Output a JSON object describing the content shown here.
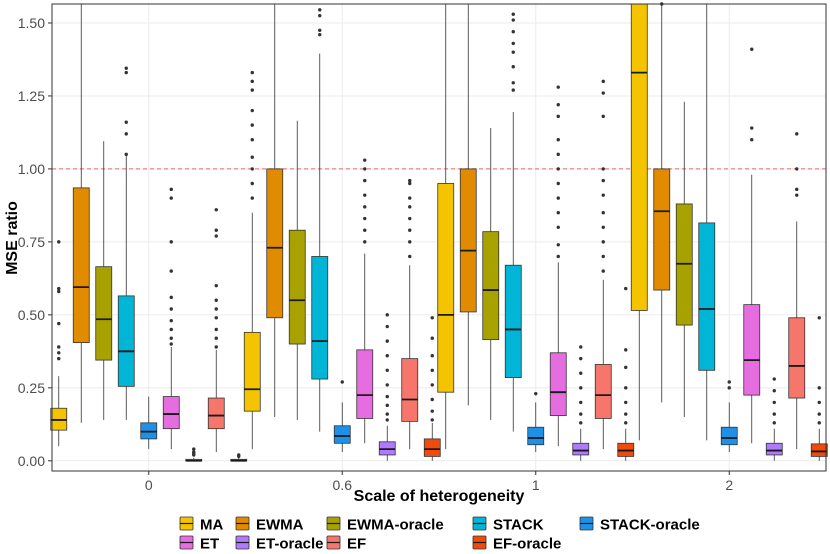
{
  "chart_data": {
    "type": "boxplot",
    "title": "",
    "xlabel": "Scale of heterogeneity",
    "ylabel": "MSE ratio",
    "ylim": [
      -0.035,
      1.565
    ],
    "yticks": [
      0.0,
      0.25,
      0.5,
      0.75,
      1.0,
      1.25,
      1.5
    ],
    "ytick_labels": [
      "0.00",
      "0.25",
      "0.50",
      "0.75",
      "1.00",
      "1.25",
      "1.50"
    ],
    "categories": [
      "0",
      "0.6",
      "1",
      "2"
    ],
    "reference_line": {
      "y": 1.0,
      "style": "dashed",
      "color": "#f08080"
    },
    "legend_position": "bottom",
    "series": [
      {
        "name": "MA",
        "color": "#f5c400",
        "boxes": [
          {
            "whislo": 0.05,
            "q1": 0.105,
            "med": 0.14,
            "q3": 0.18,
            "whishi": 0.29,
            "outliers": [
              0.35,
              0.37,
              0.39,
              0.47,
              0.58,
              0.59,
              0.75
            ]
          },
          {
            "whislo": 0.04,
            "q1": 0.17,
            "med": 0.245,
            "q3": 0.44,
            "whishi": 0.85,
            "outliers": [
              0.9,
              0.95,
              1.0,
              1.04,
              1.1,
              1.15,
              1.2,
              1.27,
              1.3,
              1.33
            ]
          },
          {
            "whislo": 0.04,
            "q1": 0.235,
            "med": 0.5,
            "q3": 0.95,
            "whishi": 1.565,
            "outliers": []
          },
          {
            "whislo": 0.07,
            "q1": 0.515,
            "med": 1.33,
            "q3": 1.565,
            "whishi": 1.565,
            "outliers": []
          }
        ]
      },
      {
        "name": "EWMA",
        "color": "#e08b00",
        "boxes": [
          {
            "whislo": 0.13,
            "q1": 0.405,
            "med": 0.595,
            "q3": 0.935,
            "whishi": 1.565,
            "outliers": []
          },
          {
            "whislo": 0.15,
            "q1": 0.49,
            "med": 0.73,
            "q3": 1.0,
            "whishi": 1.565,
            "outliers": []
          },
          {
            "whislo": 0.19,
            "q1": 0.51,
            "med": 0.72,
            "q3": 1.0,
            "whishi": 1.565,
            "outliers": []
          },
          {
            "whislo": 0.2,
            "q1": 0.585,
            "med": 0.855,
            "q3": 1.0,
            "whishi": 1.565,
            "outliers": [
              1.565
            ]
          }
        ]
      },
      {
        "name": "EWMA-oracle",
        "color": "#a8a200",
        "boxes": [
          {
            "whislo": 0.14,
            "q1": 0.345,
            "med": 0.485,
            "q3": 0.665,
            "whishi": 1.095,
            "outliers": []
          },
          {
            "whislo": 0.14,
            "q1": 0.4,
            "med": 0.55,
            "q3": 0.79,
            "whishi": 1.165,
            "outliers": []
          },
          {
            "whislo": 0.14,
            "q1": 0.415,
            "med": 0.585,
            "q3": 0.785,
            "whishi": 1.14,
            "outliers": []
          },
          {
            "whislo": 0.15,
            "q1": 0.465,
            "med": 0.675,
            "q3": 0.88,
            "whishi": 1.23,
            "outliers": []
          }
        ]
      },
      {
        "name": "STACK",
        "color": "#00b5d6",
        "boxes": [
          {
            "whislo": 0.14,
            "q1": 0.255,
            "med": 0.375,
            "q3": 0.565,
            "whishi": 1.05,
            "outliers": [
              1.05,
              1.12,
              1.16,
              1.33,
              1.345
            ]
          },
          {
            "whislo": 0.1,
            "q1": 0.28,
            "med": 0.41,
            "q3": 0.7,
            "whishi": 1.395,
            "outliers": [
              1.46,
              1.475,
              1.525,
              1.545
            ]
          },
          {
            "whislo": 0.1,
            "q1": 0.285,
            "med": 0.45,
            "q3": 0.67,
            "whishi": 1.195,
            "outliers": [
              1.27,
              1.295,
              1.35,
              1.4,
              1.43,
              1.47,
              1.51,
              1.53
            ]
          },
          {
            "whislo": 0.07,
            "q1": 0.31,
            "med": 0.52,
            "q3": 0.815,
            "whishi": 1.565,
            "outliers": []
          }
        ]
      },
      {
        "name": "STACK-oracle",
        "color": "#1e90e8",
        "boxes": [
          {
            "whislo": 0.04,
            "q1": 0.075,
            "med": 0.1,
            "q3": 0.13,
            "whishi": 0.22,
            "outliers": []
          },
          {
            "whislo": 0.03,
            "q1": 0.06,
            "med": 0.085,
            "q3": 0.12,
            "whishi": 0.2,
            "outliers": [
              0.27
            ]
          },
          {
            "whislo": 0.03,
            "q1": 0.055,
            "med": 0.078,
            "q3": 0.115,
            "whishi": 0.2,
            "outliers": [
              0.23
            ]
          },
          {
            "whislo": 0.03,
            "q1": 0.055,
            "med": 0.078,
            "q3": 0.115,
            "whishi": 0.2,
            "outliers": [
              0.25,
              0.27
            ]
          }
        ]
      },
      {
        "name": "ET",
        "color": "#e56de0",
        "boxes": [
          {
            "whislo": 0.04,
            "q1": 0.11,
            "med": 0.16,
            "q3": 0.22,
            "whishi": 0.39,
            "outliers": [
              0.4,
              0.42,
              0.45,
              0.48,
              0.52,
              0.56,
              0.65,
              0.75,
              0.9,
              0.93
            ]
          },
          {
            "whislo": 0.06,
            "q1": 0.145,
            "med": 0.225,
            "q3": 0.38,
            "whishi": 0.71,
            "outliers": [
              0.75,
              0.79,
              0.83,
              0.87,
              0.91,
              0.96,
              1.0,
              1.03
            ]
          },
          {
            "whislo": 0.05,
            "q1": 0.155,
            "med": 0.235,
            "q3": 0.37,
            "whishi": 0.68,
            "outliers": [
              0.7,
              0.74,
              0.8,
              0.85,
              0.9,
              0.95,
              1.0,
              1.05,
              1.1,
              1.18,
              1.22,
              1.28
            ]
          },
          {
            "whislo": 0.06,
            "q1": 0.225,
            "med": 0.345,
            "q3": 0.535,
            "whishi": 0.98,
            "outliers": [
              1.1,
              1.14,
              1.41
            ]
          }
        ]
      },
      {
        "name": "ET-oracle",
        "color": "#b07aff",
        "boxes": [
          {
            "whislo": 0.0,
            "q1": 0.0,
            "med": 0.0,
            "q3": 0.005,
            "whishi": 0.01,
            "outliers": [
              0.02,
              0.025,
              0.03,
              0.04
            ]
          },
          {
            "whislo": 0.0,
            "q1": 0.02,
            "med": 0.04,
            "q3": 0.065,
            "whishi": 0.12,
            "outliers": [
              0.14,
              0.16,
              0.19,
              0.22,
              0.26,
              0.31,
              0.36,
              0.41,
              0.46,
              0.5
            ]
          },
          {
            "whislo": 0.0,
            "q1": 0.02,
            "med": 0.035,
            "q3": 0.06,
            "whishi": 0.11,
            "outliers": [
              0.13,
              0.16,
              0.2,
              0.25,
              0.3,
              0.35,
              0.39
            ]
          },
          {
            "whislo": 0.0,
            "q1": 0.02,
            "med": 0.035,
            "q3": 0.06,
            "whishi": 0.11,
            "outliers": [
              0.13,
              0.16,
              0.2,
              0.24,
              0.28
            ]
          }
        ]
      },
      {
        "name": "EF",
        "color": "#f7766c",
        "boxes": [
          {
            "whislo": 0.03,
            "q1": 0.11,
            "med": 0.155,
            "q3": 0.215,
            "whishi": 0.38,
            "outliers": [
              0.39,
              0.42,
              0.45,
              0.49,
              0.52,
              0.55,
              0.6,
              0.77,
              0.79,
              0.86
            ]
          },
          {
            "whislo": 0.04,
            "q1": 0.135,
            "med": 0.21,
            "q3": 0.35,
            "whishi": 0.67,
            "outliers": [
              0.7,
              0.75,
              0.79,
              0.83,
              0.87,
              0.9,
              0.95,
              0.96
            ]
          },
          {
            "whislo": 0.04,
            "q1": 0.145,
            "med": 0.225,
            "q3": 0.33,
            "whishi": 0.62,
            "outliers": [
              0.65,
              0.7,
              0.75,
              0.8,
              0.85,
              0.91,
              0.96,
              1.0,
              1.18,
              1.26,
              1.3
            ]
          },
          {
            "whislo": 0.04,
            "q1": 0.215,
            "med": 0.325,
            "q3": 0.49,
            "whishi": 0.82,
            "outliers": [
              0.91,
              0.93,
              1.0,
              1.12
            ]
          }
        ]
      },
      {
        "name": "EF-oracle",
        "color": "#f04a0d",
        "boxes": [
          {
            "whislo": 0.0,
            "q1": 0.0,
            "med": 0.0,
            "q3": 0.005,
            "whishi": 0.01,
            "outliers": [
              0.015,
              0.02
            ]
          },
          {
            "whislo": 0.0,
            "q1": 0.015,
            "med": 0.04,
            "q3": 0.075,
            "whishi": 0.13,
            "outliers": [
              0.14,
              0.17,
              0.21,
              0.26,
              0.31,
              0.36,
              0.42,
              0.49
            ]
          },
          {
            "whislo": 0.0,
            "q1": 0.015,
            "med": 0.035,
            "q3": 0.06,
            "whishi": 0.11,
            "outliers": [
              0.13,
              0.16,
              0.2,
              0.25,
              0.32,
              0.38,
              0.59
            ]
          },
          {
            "whislo": 0.0,
            "q1": 0.015,
            "med": 0.032,
            "q3": 0.058,
            "whishi": 0.11,
            "outliers": [
              0.13,
              0.16,
              0.2,
              0.25,
              0.49
            ]
          }
        ]
      }
    ]
  }
}
